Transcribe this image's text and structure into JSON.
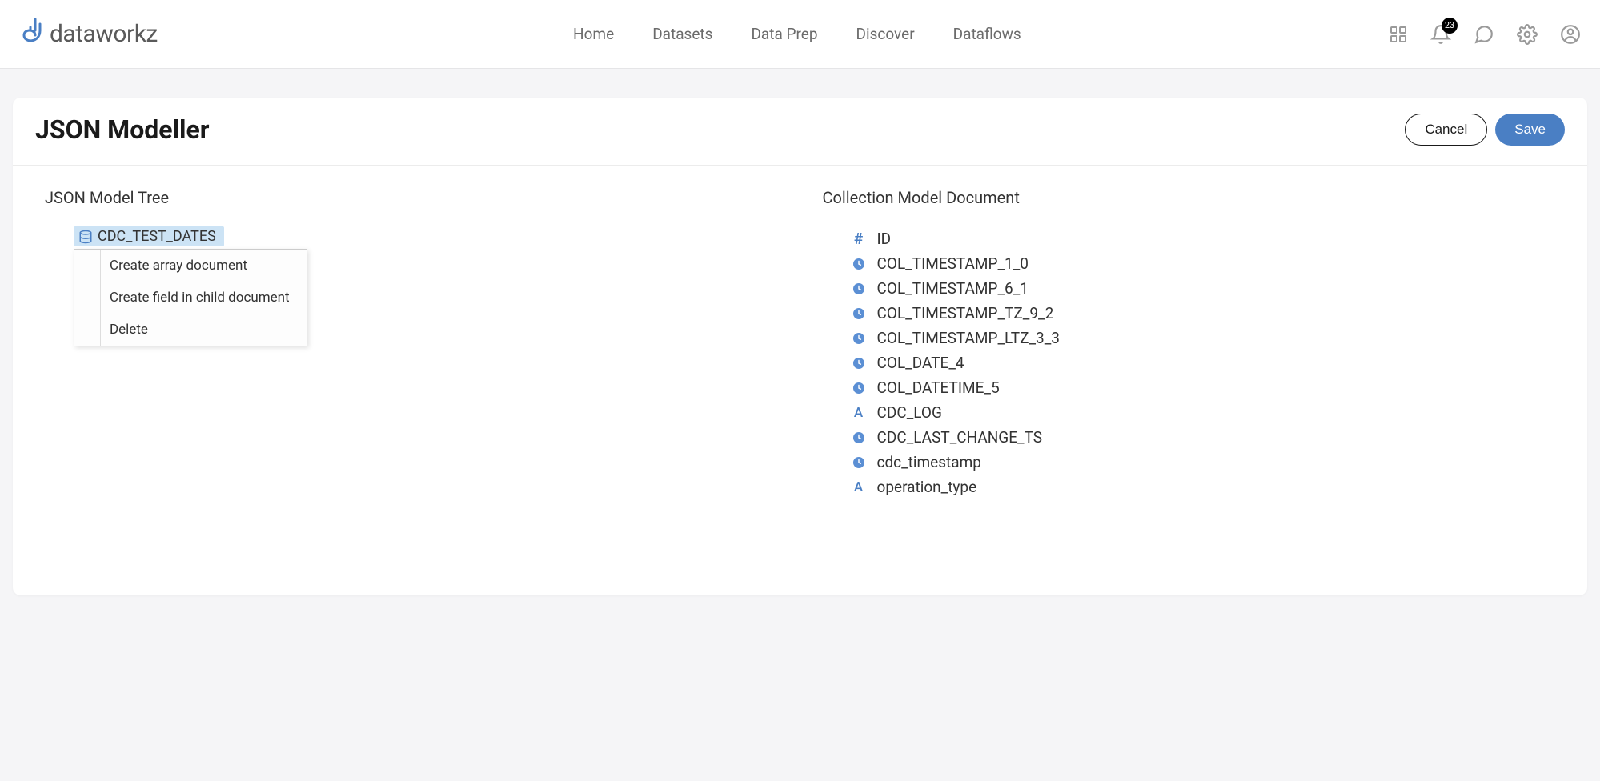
{
  "brand": {
    "name": "dataworkz"
  },
  "nav": {
    "items": [
      {
        "label": "Home"
      },
      {
        "label": "Datasets"
      },
      {
        "label": "Data Prep"
      },
      {
        "label": "Discover"
      },
      {
        "label": "Dataflows"
      }
    ]
  },
  "topbar": {
    "notification_count": "23"
  },
  "page": {
    "title": "JSON Modeller",
    "cancel_label": "Cancel",
    "save_label": "Save"
  },
  "left": {
    "title": "JSON Model Tree",
    "root_node": "CDC_TEST_DATES",
    "context_menu": [
      {
        "label": "Create array document"
      },
      {
        "label": "Create field in child document"
      },
      {
        "label": "Delete"
      }
    ]
  },
  "right": {
    "title": "Collection Model Document",
    "fields": [
      {
        "icon": "hash",
        "label": "ID"
      },
      {
        "icon": "time",
        "label": "COL_TIMESTAMP_1_0"
      },
      {
        "icon": "time",
        "label": "COL_TIMESTAMP_6_1"
      },
      {
        "icon": "time",
        "label": "COL_TIMESTAMP_TZ_9_2"
      },
      {
        "icon": "time",
        "label": "COL_TIMESTAMP_LTZ_3_3"
      },
      {
        "icon": "time",
        "label": "COL_DATE_4"
      },
      {
        "icon": "time",
        "label": "COL_DATETIME_5"
      },
      {
        "icon": "letter",
        "label": "CDC_LOG"
      },
      {
        "icon": "time",
        "label": "CDC_LAST_CHANGE_TS"
      },
      {
        "icon": "time",
        "label": "cdc_timestamp"
      },
      {
        "icon": "letter",
        "label": "operation_type"
      }
    ]
  },
  "colors": {
    "brand_blue": "#4a7fc4",
    "selected_bg": "#cce3f5",
    "page_bg": "#f5f5f7",
    "card_bg": "#ffffff",
    "text_primary": "#1a1a1a",
    "text_secondary": "#6b6b6b",
    "border": "#ececec"
  }
}
